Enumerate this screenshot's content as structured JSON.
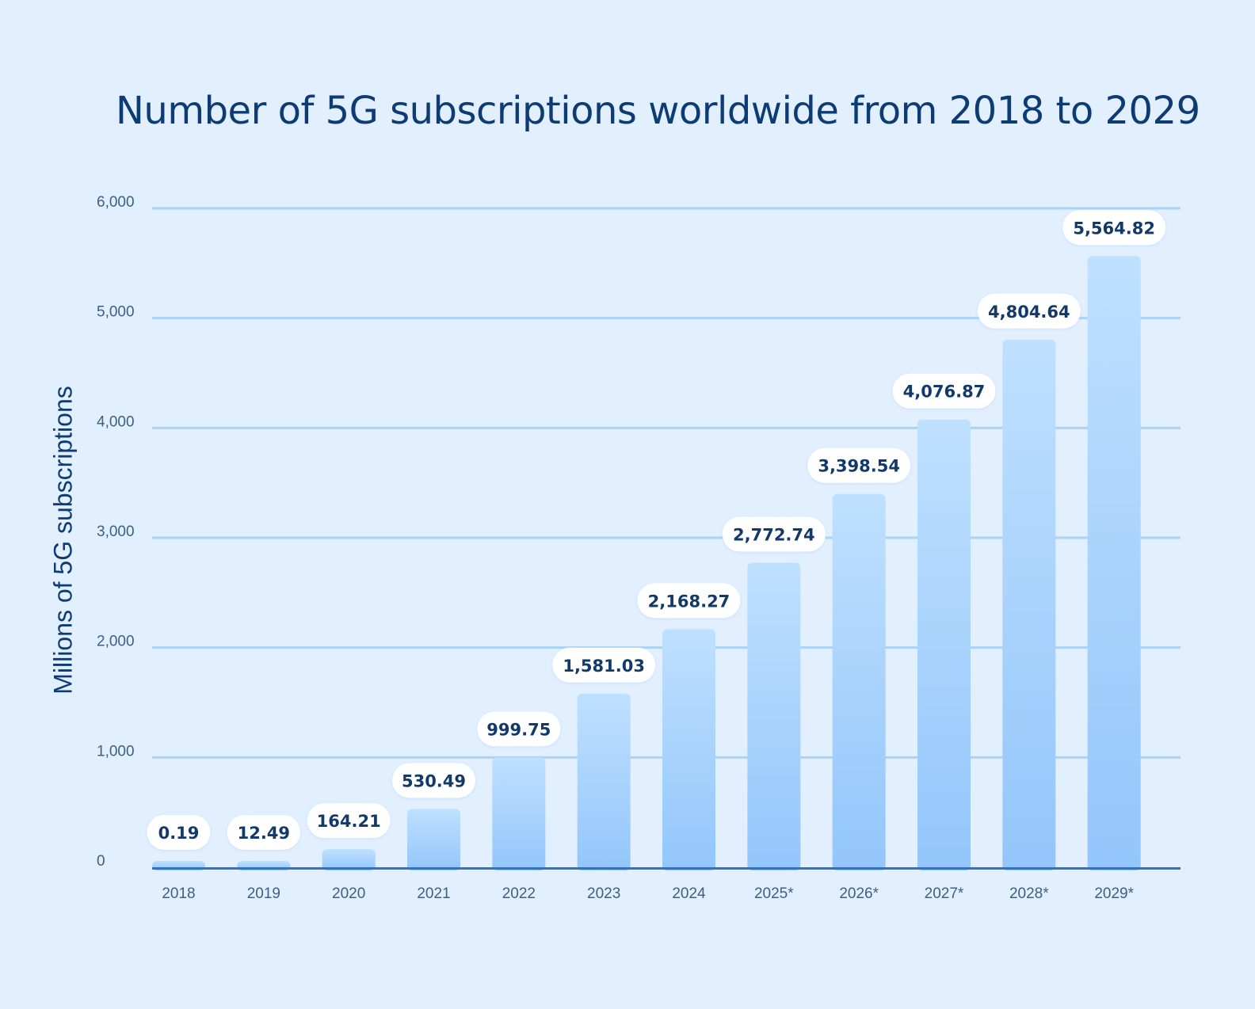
{
  "chart_data": {
    "type": "bar",
    "title": "Number of 5G subscriptions worldwide from 2018 to 2029",
    "xlabel": "",
    "ylabel": "Millions of 5G subscriptions",
    "ylim": [
      0,
      6000
    ],
    "yticks": [
      0,
      1000,
      2000,
      3000,
      4000,
      5000,
      6000
    ],
    "ytick_labels": [
      "0",
      "1,000",
      "2,000",
      "3,000",
      "4,000",
      "5,000",
      "6,000"
    ],
    "categories": [
      "2018",
      "2019",
      "2020",
      "2021",
      "2022",
      "2023",
      "2024",
      "2025*",
      "2026*",
      "2027*",
      "2028*",
      "2029*"
    ],
    "values": [
      0.19,
      12.49,
      164.21,
      530.49,
      999.75,
      1581.03,
      2168.27,
      2772.74,
      3398.54,
      4076.87,
      4804.64,
      5564.82
    ],
    "value_labels": [
      "0.19",
      "12.49",
      "164.21",
      "530.49",
      "999.75",
      "1,581.03",
      "2,168.27",
      "2,772.74",
      "3,398.54",
      "4,076.87",
      "4,804.64",
      "5,564.82"
    ],
    "grid": true,
    "colors": {
      "background": "#e1efff",
      "bar_top": "#bfe0ff",
      "bar_bottom": "#93c6fb",
      "gridline": "#a9d3f7",
      "baseline": "#2f73c4",
      "title": "#0d3c74",
      "label_bg": "#ffffff"
    }
  }
}
